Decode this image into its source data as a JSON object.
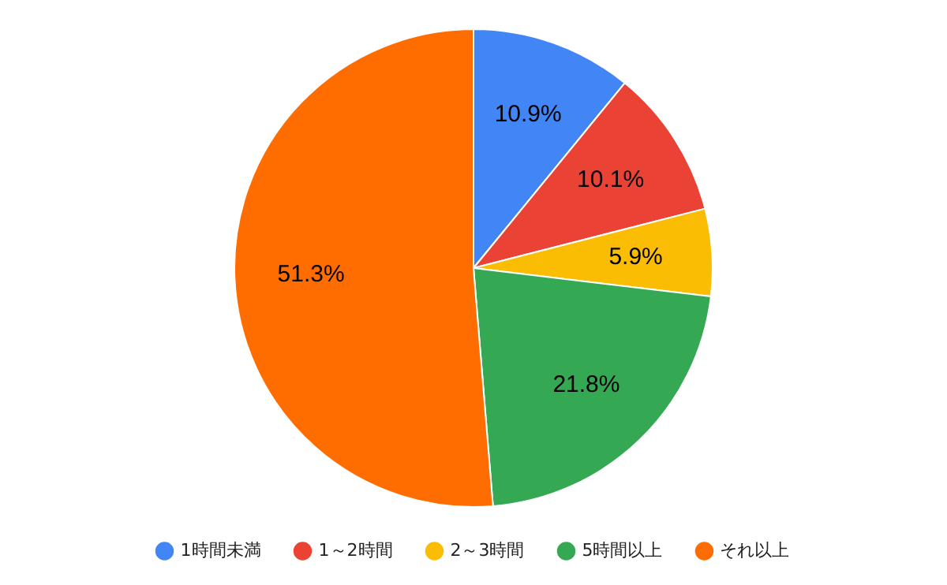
{
  "chart_data": {
    "type": "pie",
    "categories": [
      "1時間未満",
      "1～2時間",
      "2～3時間",
      "5時間以上",
      "それ以上"
    ],
    "values": [
      10.9,
      10.1,
      5.9,
      21.8,
      51.3
    ],
    "colors": [
      "#4285f4",
      "#ea4335",
      "#fbbc04",
      "#34a853",
      "#ff6d01"
    ],
    "value_labels": [
      "10.9%",
      "10.1%",
      "5.9%",
      "21.8%",
      "51.3%"
    ],
    "legend": "bottom"
  }
}
